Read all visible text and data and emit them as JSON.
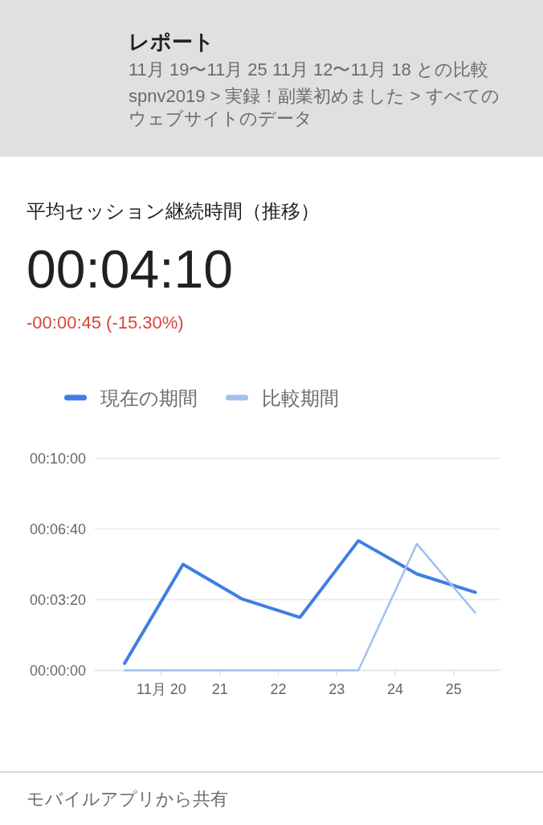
{
  "chart_data": {
    "type": "line",
    "title": "平均セッション継続時間（推移）",
    "annotations": [
      "レポート",
      "11月 19〜11月 25 11月 12〜11月 18 との比較",
      "spnv2019 > 実録！副業初めました > すべてのウェブサイトのデータ",
      "00:04:10",
      "-00:00:45 (-15.30%)",
      "モバイルアプリから共有"
    ],
    "x": [
      19,
      20,
      21,
      22,
      23,
      24,
      25
    ],
    "xlim": [
      18.49,
      25.43
    ],
    "xticks": [
      {
        "value": 19.63,
        "label": "11月 20"
      },
      {
        "value": 20.63,
        "label": "21"
      },
      {
        "value": 21.63,
        "label": "22"
      },
      {
        "value": 22.63,
        "label": "23"
      },
      {
        "value": 23.63,
        "label": "24"
      },
      {
        "value": 24.63,
        "label": "25"
      }
    ],
    "ylim": [
      0,
      600
    ],
    "yticks": [
      {
        "value": 0,
        "label": "00:00:00"
      },
      {
        "value": 200,
        "label": "00:03:20"
      },
      {
        "value": 400,
        "label": "00:06:40"
      },
      {
        "value": 600,
        "label": "00:10:00"
      }
    ],
    "series": [
      {
        "name": "現在の期間",
        "color": "#3f7fe3",
        "values": [
          20,
          300,
          203,
          150,
          367,
          273,
          221
        ]
      },
      {
        "name": "比較期間",
        "color": "#9fc1ee",
        "values": [
          0,
          0,
          0,
          0,
          0,
          358,
          163
        ]
      }
    ],
    "grid": "y",
    "legend": "top left",
    "line_style": "solid"
  }
}
